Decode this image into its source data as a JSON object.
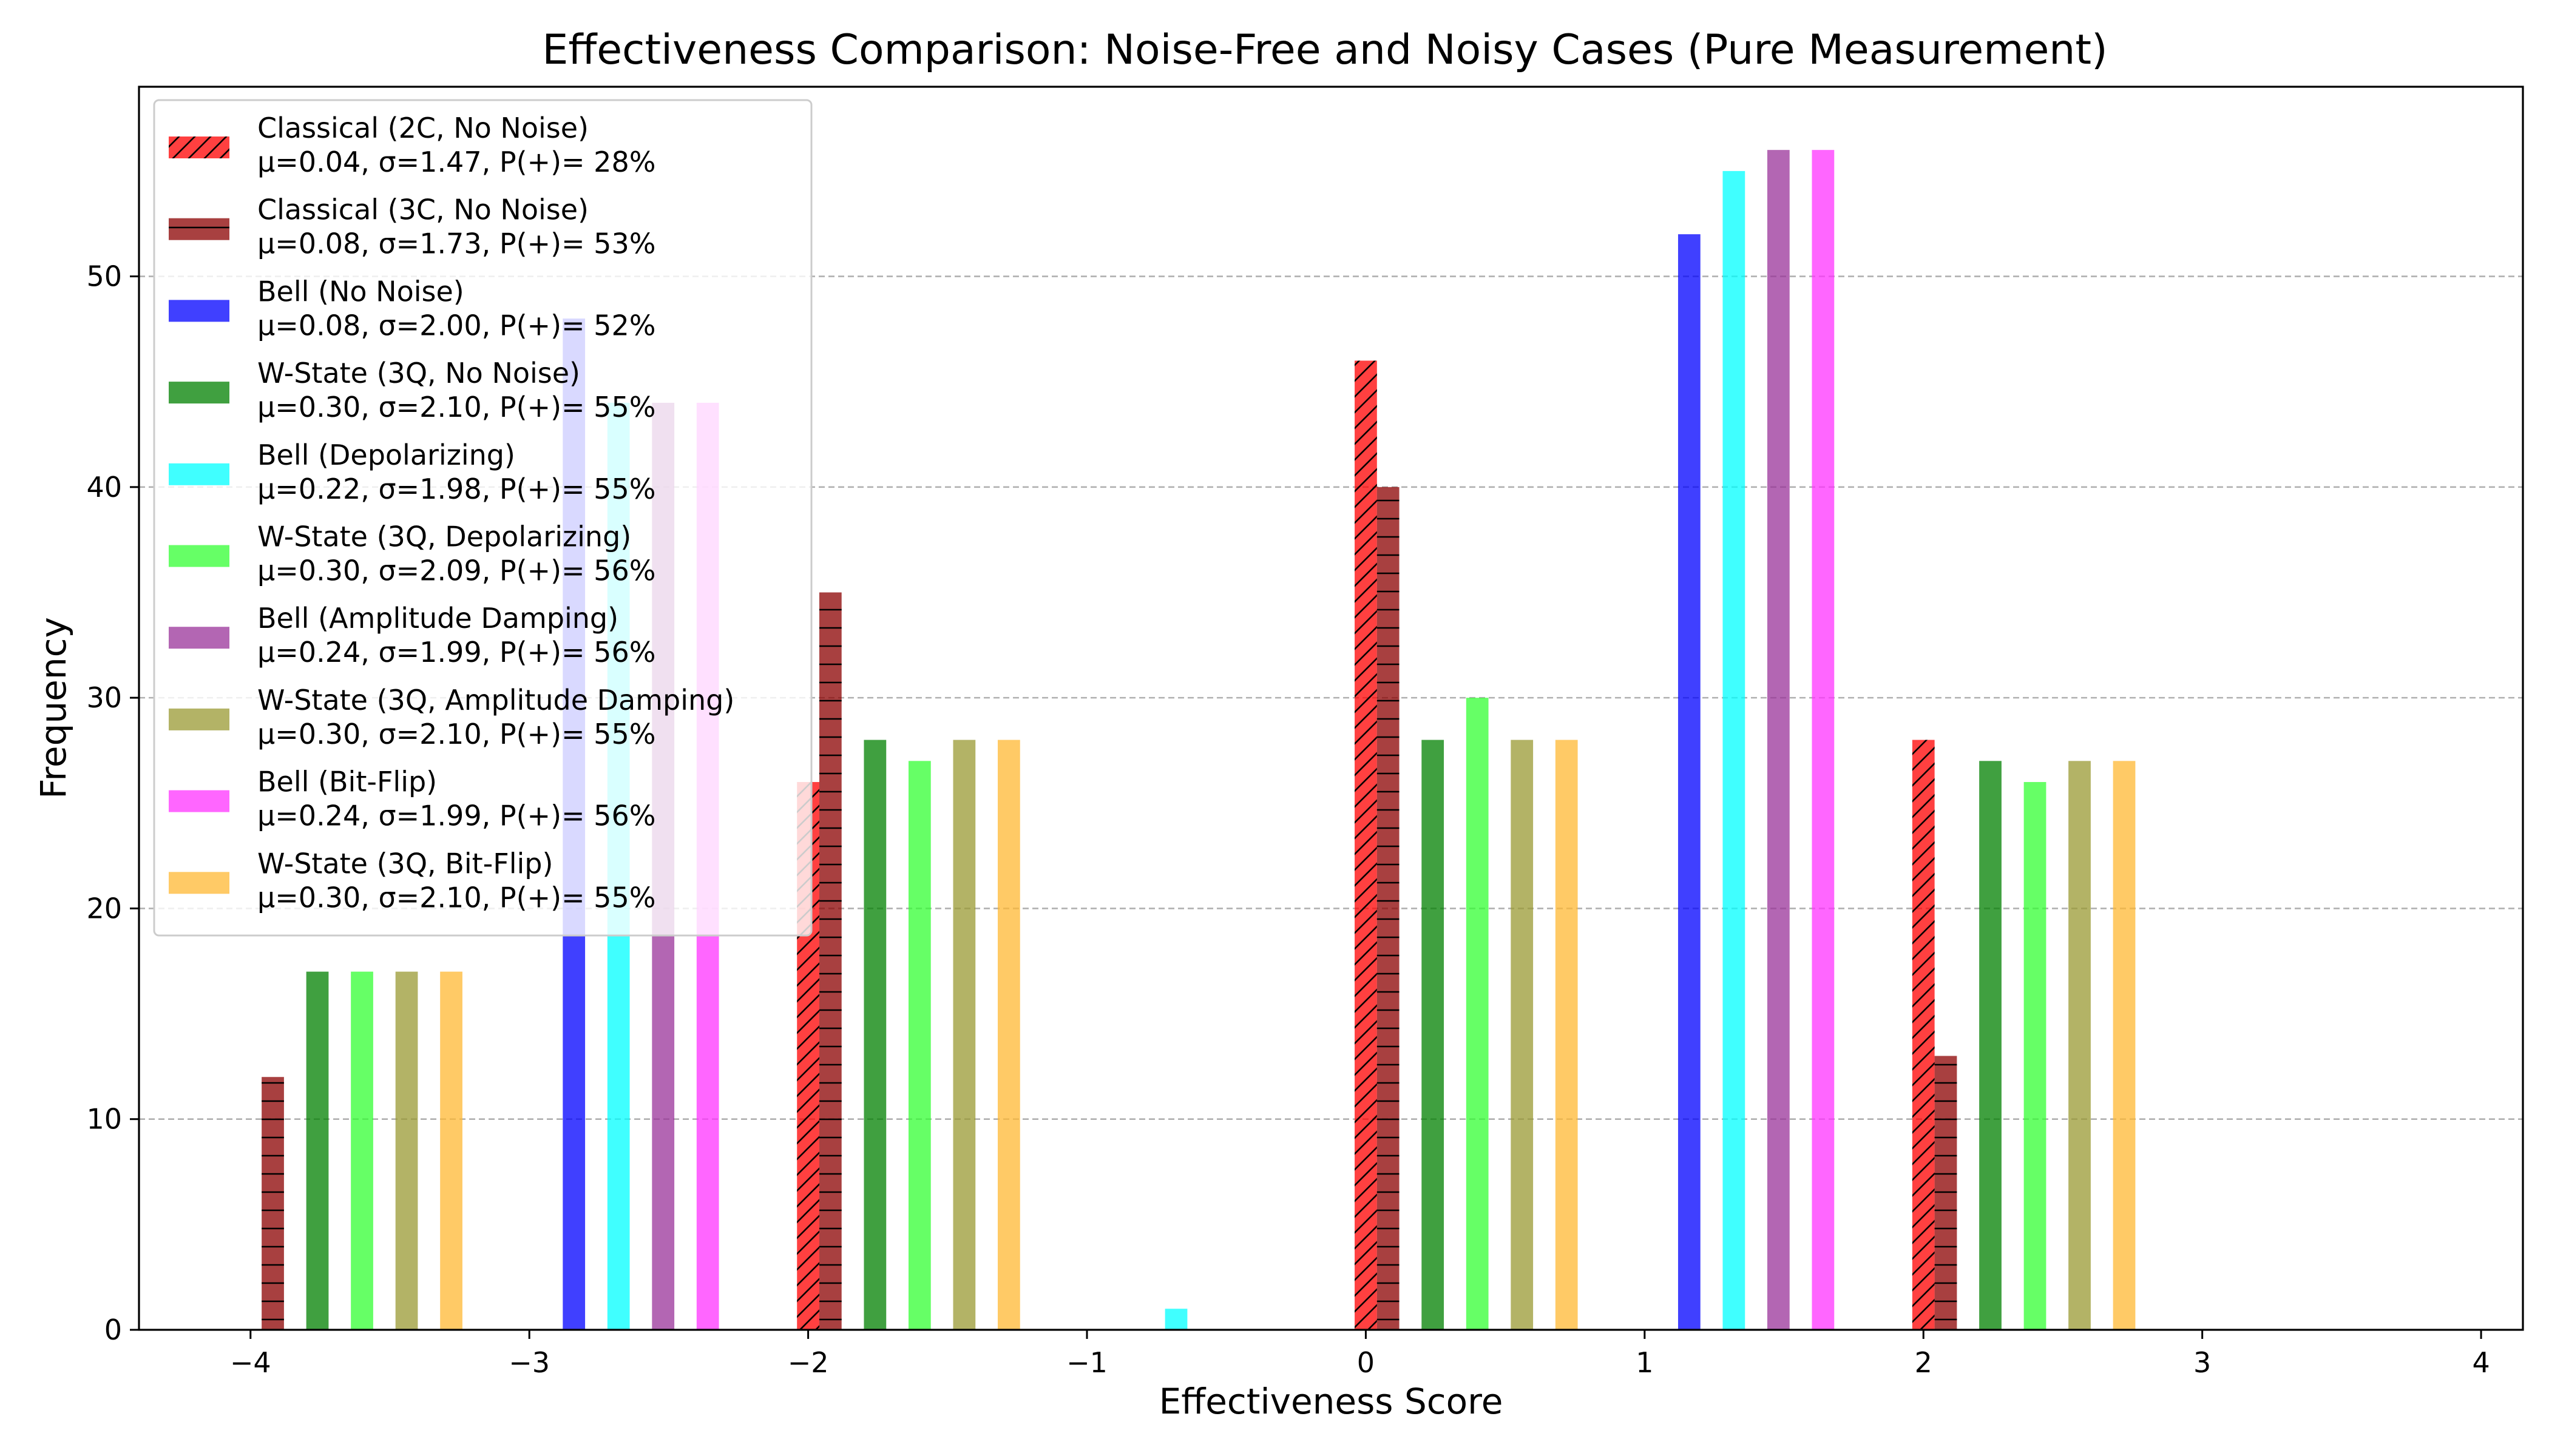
{
  "chart_data": {
    "type": "bar",
    "title": "Effectiveness Comparison: Noise-Free and Noisy Cases (Pure Measurement)",
    "xlabel": "Effectiveness Score",
    "ylabel": "Frequency",
    "xlim": [
      -4.4,
      4.15
    ],
    "ylim": [
      0,
      59
    ],
    "xticks": [
      -4,
      -3,
      -2,
      -1,
      0,
      1,
      2,
      3,
      4
    ],
    "xtick_labels": [
      "−4",
      "−3",
      "−2",
      "−1",
      "0",
      "1",
      "2",
      "3",
      "4"
    ],
    "yticks": [
      0,
      10,
      20,
      30,
      40,
      50
    ],
    "ytick_labels": [
      "0",
      "10",
      "20",
      "30",
      "40",
      "50"
    ],
    "grid": "y, dashed",
    "legend_position": "top-left",
    "series": [
      {
        "name": "Classical (2C, No Noise)",
        "stats": "μ=0.04, σ=1.47, P(+)= 28%",
        "color": "#ff0000",
        "hatch": "diagonal",
        "values": [
          {
            "x": -2.0,
            "y": 26
          },
          {
            "x": 0.0,
            "y": 46
          },
          {
            "x": 2.0,
            "y": 28
          }
        ]
      },
      {
        "name": "Classical (3C, No Noise)",
        "stats": "μ=0.08, σ=1.73, P(+)= 53%",
        "color": "#8b0000",
        "hatch": "horizontal",
        "values": [
          {
            "x": -3.92,
            "y": 12
          },
          {
            "x": -1.92,
            "y": 35
          },
          {
            "x": 0.08,
            "y": 40
          },
          {
            "x": 2.08,
            "y": 13
          }
        ]
      },
      {
        "name": "Bell (No Noise)",
        "stats": "μ=0.08, σ=2.00, P(+)= 52%",
        "color": "#0000ff",
        "values": [
          {
            "x": -2.84,
            "y": 48
          },
          {
            "x": 1.16,
            "y": 52
          }
        ]
      },
      {
        "name": "W-State (3Q, No Noise)",
        "stats": "μ=0.30, σ=2.10, P(+)= 55%",
        "color": "#008000",
        "values": [
          {
            "x": -3.76,
            "y": 17
          },
          {
            "x": -1.76,
            "y": 28
          },
          {
            "x": 0.24,
            "y": 28
          },
          {
            "x": 2.24,
            "y": 27
          }
        ]
      },
      {
        "name": "Bell (Depolarizing)",
        "stats": "μ=0.22, σ=1.98, P(+)= 55%",
        "color": "#00ffff",
        "values": [
          {
            "x": -2.68,
            "y": 44
          },
          {
            "x": -0.68,
            "y": 1
          },
          {
            "x": 1.32,
            "y": 55
          }
        ]
      },
      {
        "name": "W-State (3Q, Depolarizing)",
        "stats": "μ=0.30, σ=2.09, P(+)= 56%",
        "color": "#33ff33",
        "values": [
          {
            "x": -3.6,
            "y": 17
          },
          {
            "x": -1.6,
            "y": 27
          },
          {
            "x": 0.4,
            "y": 30
          },
          {
            "x": 2.4,
            "y": 26
          }
        ]
      },
      {
        "name": "Bell (Amplitude Damping)",
        "stats": "μ=0.24, σ=1.99, P(+)= 56%",
        "color": "#993399",
        "values": [
          {
            "x": -2.52,
            "y": 44
          },
          {
            "x": 1.48,
            "y": 56
          }
        ]
      },
      {
        "name": "W-State (3Q, Amplitude Damping)",
        "stats": "μ=0.30, σ=2.10, P(+)= 55%",
        "color": "#999933",
        "values": [
          {
            "x": -3.44,
            "y": 17
          },
          {
            "x": -1.44,
            "y": 28
          },
          {
            "x": 0.56,
            "y": 28
          },
          {
            "x": 2.56,
            "y": 27
          }
        ]
      },
      {
        "name": "Bell (Bit-Flip)",
        "stats": "μ=0.24, σ=1.99, P(+)= 56%",
        "color": "#ff33ff",
        "values": [
          {
            "x": -2.36,
            "y": 44
          },
          {
            "x": 1.64,
            "y": 56
          }
        ]
      },
      {
        "name": "W-State (3Q, Bit-Flip)",
        "stats": "μ=0.30, σ=2.10, P(+)= 55%",
        "color": "#ffb833",
        "values": [
          {
            "x": -3.28,
            "y": 17
          },
          {
            "x": -1.28,
            "y": 28
          },
          {
            "x": 0.72,
            "y": 28
          },
          {
            "x": 2.72,
            "y": 27
          }
        ]
      }
    ]
  }
}
